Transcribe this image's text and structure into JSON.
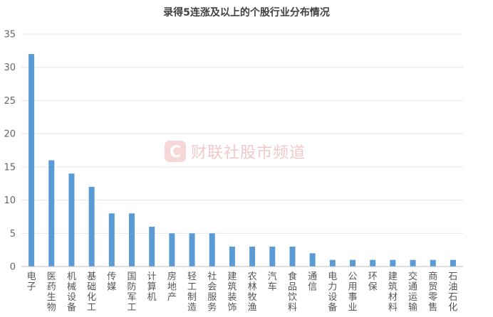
{
  "chart_data": {
    "type": "bar",
    "title": "录得5连涨及以上的个股行业分布情况",
    "xlabel": "",
    "ylabel": "",
    "ylim": [
      0,
      35
    ],
    "yticks": [
      0,
      5,
      10,
      15,
      20,
      25,
      30,
      35
    ],
    "grid": true,
    "legend": "none",
    "bar_color": "#5b9bd5",
    "categories": [
      "电子",
      "医药生物",
      "机械设备",
      "基础化工",
      "传媒",
      "国防军工",
      "计算机",
      "房地产",
      "轻工制造",
      "社会服务",
      "建筑装饰",
      "农林牧渔",
      "汽车",
      "食品饮料",
      "通信",
      "电力设备",
      "公用事业",
      "环保",
      "建筑材料",
      "交通运输",
      "商贸零售",
      "石油石化"
    ],
    "values": [
      32,
      16,
      14,
      12,
      8,
      8,
      6,
      5,
      5,
      5,
      3,
      3,
      3,
      3,
      2,
      1,
      1,
      1,
      1,
      1,
      1,
      1
    ]
  },
  "watermark": {
    "logo_glyph": "C",
    "text": "财联社股市频道",
    "color": "#e8a0a0"
  }
}
